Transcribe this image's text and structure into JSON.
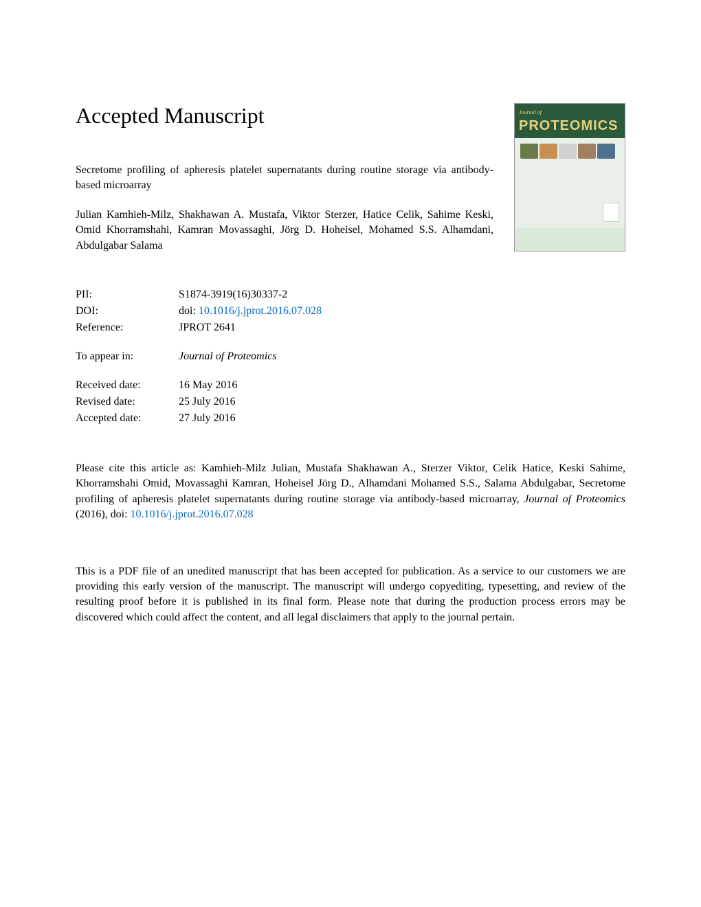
{
  "header": {
    "accepted_title": "Accepted Manuscript"
  },
  "article": {
    "title": "Secretome profiling of apheresis platelet supernatants during routine storage via antibody-based microarray",
    "authors": "Julian Kamhieh-Milz, Shakhawan A. Mustafa, Viktor Sterzer, Hatice Celik, Sahime Keski, Omid Khorramshahi, Kamran Movassaghi, Jörg D. Hoheisel, Mohamed S.S. Alhamdani, Abdulgabar Salama"
  },
  "journal_cover": {
    "header_text": "Journal of",
    "title": "PROTEOMICS"
  },
  "metadata": {
    "pii_label": "PII:",
    "pii_value": "S1874-3919(16)30337-2",
    "doi_label": "DOI:",
    "doi_prefix": "doi: ",
    "doi_link": "10.1016/j.jprot.2016.07.028",
    "reference_label": "Reference:",
    "reference_value": "JPROT 2641",
    "appear_label": "To appear in:",
    "appear_value": "Journal of Proteomics",
    "received_label": "Received date:",
    "received_value": "16 May 2016",
    "revised_label": "Revised date:",
    "revised_value": "25 July 2016",
    "accepted_label": "Accepted date:",
    "accepted_value": "27 July 2016"
  },
  "citation": {
    "prefix": "Please cite this article as: Kamhieh-Milz Julian, Mustafa Shakhawan A., Sterzer Viktor, Celik Hatice, Keski Sahime, Khorramshahi Omid, Movassaghi Kamran, Hoheisel Jörg D., Alhamdani Mohamed S.S., Salama Abdulgabar, Secretome profiling of apheresis platelet supernatants during routine storage via antibody-based microarray, ",
    "journal": "Journal of Proteomics",
    "year": " (2016),  doi: ",
    "doi_link": "10.1016/j.jprot.2016.07.028"
  },
  "disclaimer": {
    "text": "This is a PDF file of an unedited manuscript that has been accepted for publication. As a service to our customers we are providing this early version of the manuscript. The manuscript will undergo copyediting, typesetting, and review of the resulting proof before it is published in its final form. Please note that during the production process errors may be discovered which could affect the content, and all legal disclaimers that apply to the journal pertain."
  },
  "colors": {
    "link_color": "#0066cc",
    "text_color": "#000000",
    "background": "#ffffff",
    "journal_header_bg": "#2a5a3a",
    "journal_title_color": "#e8d080"
  },
  "typography": {
    "body_font": "Times New Roman",
    "accepted_title_size": 32,
    "body_size": 16
  }
}
